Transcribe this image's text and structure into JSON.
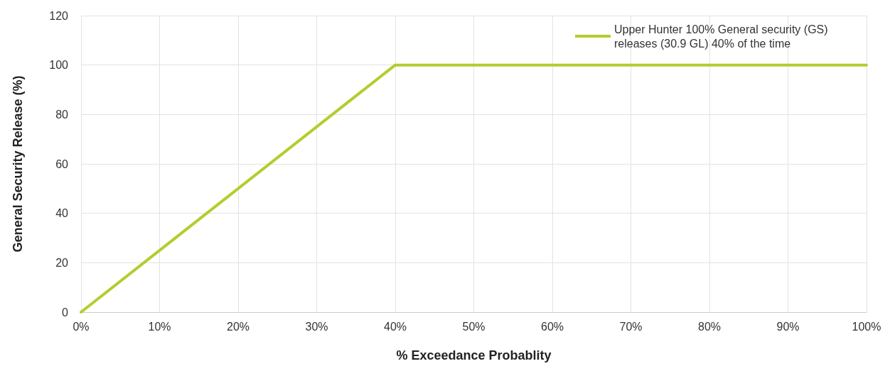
{
  "chart_data": {
    "type": "line",
    "xlabel": "% Exceedance Probablity",
    "ylabel": "General Security Release (%)",
    "x": [
      0,
      40,
      100
    ],
    "series": [
      {
        "name": "Upper Hunter 100% General security (GS) releases (30.9 GL) 40% of the time",
        "color": "#b5cc2e",
        "values": [
          0,
          100,
          100
        ]
      }
    ],
    "xlim": [
      0,
      100
    ],
    "xticks": [
      {
        "value": 0,
        "label": "0%"
      },
      {
        "value": 10,
        "label": "10%"
      },
      {
        "value": 20,
        "label": "20%"
      },
      {
        "value": 30,
        "label": "30%"
      },
      {
        "value": 40,
        "label": "40%"
      },
      {
        "value": 50,
        "label": "50%"
      },
      {
        "value": 60,
        "label": "60%"
      },
      {
        "value": 70,
        "label": "70%"
      },
      {
        "value": 80,
        "label": "80%"
      },
      {
        "value": 90,
        "label": "90%"
      },
      {
        "value": 100,
        "label": "100%"
      }
    ],
    "ylim": [
      0,
      120
    ],
    "yticks": [
      0,
      20,
      40,
      60,
      80,
      100,
      120
    ],
    "grid": true,
    "legend": "top right",
    "marker": "none",
    "line_style": "solid"
  }
}
